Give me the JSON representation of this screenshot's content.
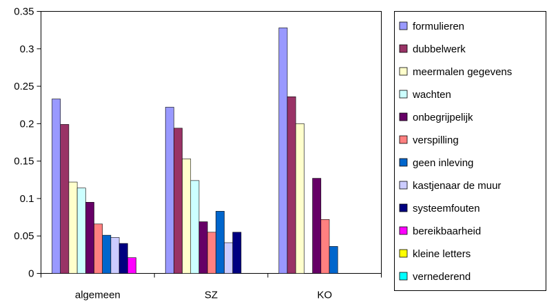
{
  "chart_data": {
    "type": "bar",
    "categories": [
      "algemeen",
      "SZ",
      "KO"
    ],
    "ylim": [
      0,
      0.35
    ],
    "yticks": [
      "0",
      "0.05",
      "0.1",
      "0.15",
      "0.2",
      "0.25",
      "0.3",
      "0.35"
    ],
    "grid": false,
    "legend_position": "right",
    "series": [
      {
        "name": "formulieren",
        "color": "#9999FF",
        "values": [
          0.233,
          0.222,
          0.328
        ]
      },
      {
        "name": "dubbelwerk",
        "color": "#993366",
        "values": [
          0.199,
          0.194,
          0.236
        ]
      },
      {
        "name": "meermalen gegevens",
        "color": "#FFFFCC",
        "values": [
          0.122,
          0.153,
          0.2
        ]
      },
      {
        "name": "wachten",
        "color": "#CCFFFF",
        "values": [
          0.114,
          0.124,
          0
        ]
      },
      {
        "name": "onbegrijpelijk",
        "color": "#660066",
        "values": [
          0.095,
          0.069,
          0.127
        ]
      },
      {
        "name": "verspilling",
        "color": "#FF8080",
        "values": [
          0.066,
          0.055,
          0.072
        ]
      },
      {
        "name": "geen inleving",
        "color": "#0066CC",
        "values": [
          0.051,
          0.083,
          0.036
        ]
      },
      {
        "name": "kastjenaar de muur",
        "color": "#CCCCFF",
        "values": [
          0.048,
          0.041,
          0
        ]
      },
      {
        "name": "systeemfouten",
        "color": "#000080",
        "values": [
          0.04,
          0.055,
          0
        ]
      },
      {
        "name": "bereikbaarheid",
        "color": "#FF00FF",
        "values": [
          0.021,
          0,
          0
        ]
      },
      {
        "name": "kleine letters",
        "color": "#FFFF00",
        "values": [
          0,
          0,
          0
        ]
      },
      {
        "name": "vernederend",
        "color": "#00FFFF",
        "values": [
          0,
          0,
          0
        ]
      }
    ]
  }
}
